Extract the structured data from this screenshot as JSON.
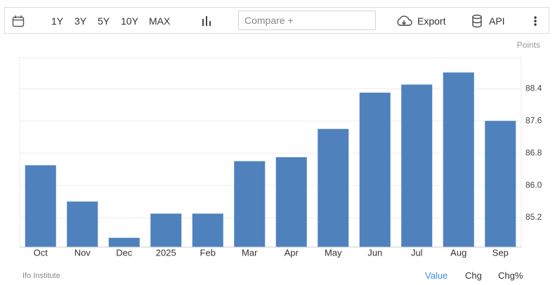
{
  "toolbar": {
    "ranges": [
      "1Y",
      "3Y",
      "5Y",
      "10Y",
      "MAX"
    ],
    "compare": "Compare +",
    "export": "Export",
    "api": "API"
  },
  "source": "Ifo Institute",
  "views": [
    "Value",
    "Chg",
    "Chg%"
  ],
  "chart_data": {
    "type": "bar",
    "unit": "Points",
    "categories": [
      "Oct",
      "Nov",
      "Dec",
      "2025",
      "Feb",
      "Mar",
      "Apr",
      "May",
      "Jun",
      "Jul",
      "Aug",
      "Sep"
    ],
    "values": [
      86.5,
      85.6,
      84.7,
      85.3,
      85.3,
      86.6,
      86.7,
      87.4,
      88.3,
      88.5,
      88.8,
      87.6
    ],
    "color": "#4f81bd",
    "ylim": [
      84.47,
      89.17
    ],
    "yticks": [
      85.2,
      {
        "value": 86,
        "label": "86.0"
      },
      86.8,
      87.6,
      88.4
    ],
    "grid": true
  }
}
